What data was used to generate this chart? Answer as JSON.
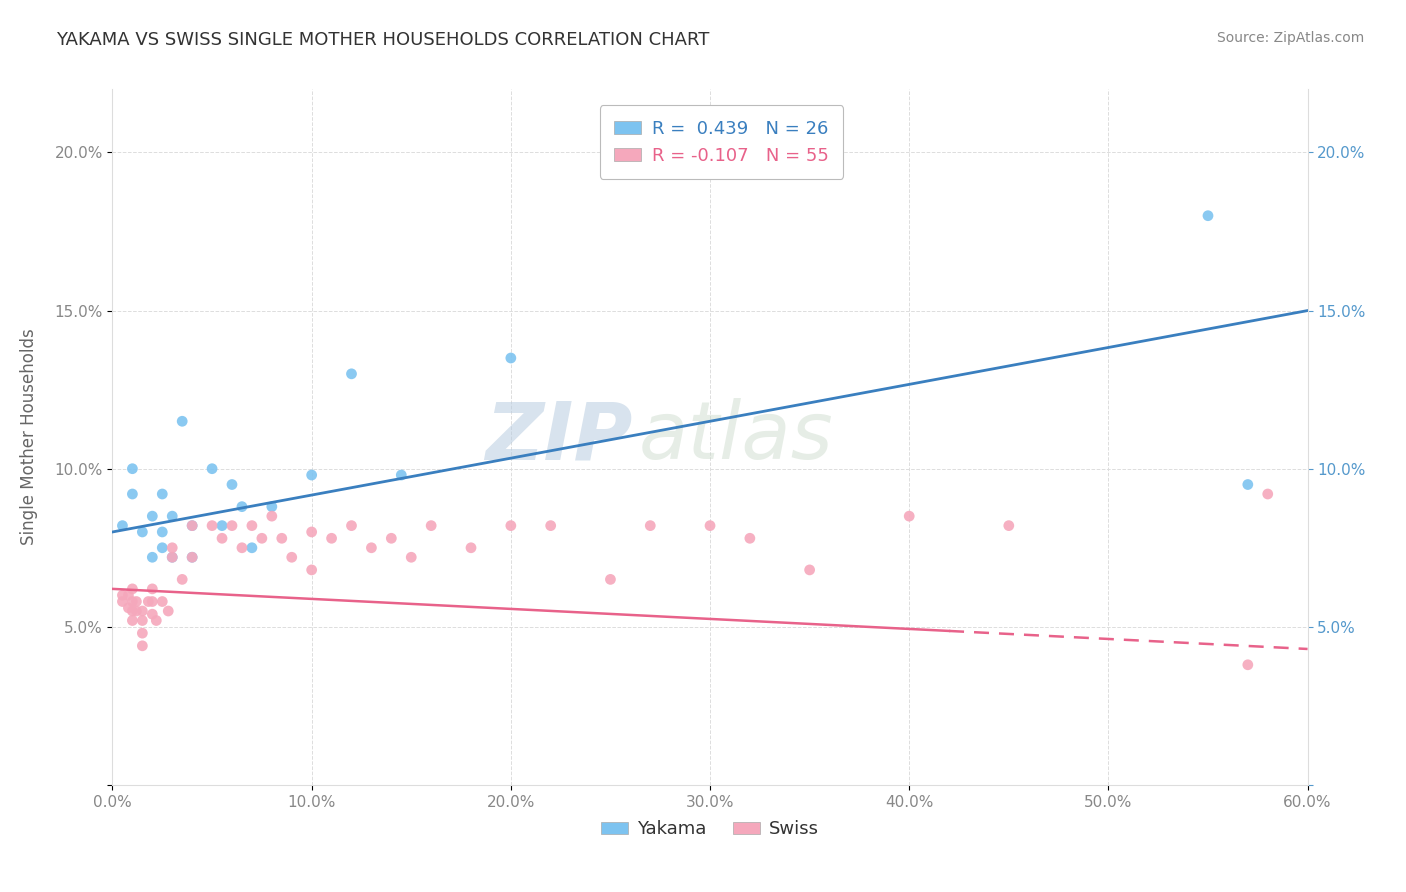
{
  "title": "YAKAMA VS SWISS SINGLE MOTHER HOUSEHOLDS CORRELATION CHART",
  "source": "Source: ZipAtlas.com",
  "ylabel_label": "Single Mother Households",
  "xlim": [
    0.0,
    0.6
  ],
  "ylim": [
    0.0,
    0.22
  ],
  "xticks": [
    0.0,
    0.1,
    0.2,
    0.3,
    0.4,
    0.5,
    0.6
  ],
  "xticklabels": [
    "0.0%",
    "10.0%",
    "20.0%",
    "30.0%",
    "40.0%",
    "50.0%",
    "60.0%"
  ],
  "yticks": [
    0.0,
    0.05,
    0.1,
    0.15,
    0.2
  ],
  "yticklabels": [
    "",
    "5.0%",
    "10.0%",
    "15.0%",
    "20.0%"
  ],
  "R_yakama": 0.439,
  "N_yakama": 26,
  "R_swiss": -0.107,
  "N_swiss": 55,
  "yakama_color": "#7DC3F0",
  "swiss_color": "#F5A8BC",
  "trendline_yakama_color": "#3A7FBF",
  "trendline_swiss_color": "#E8628A",
  "watermark": "ZIPatlas",
  "watermark_color": "#C8D8E8",
  "background_color": "#FFFFFF",
  "grid_color": "#DDDDDD",
  "title_color": "#333333",
  "axis_label_color": "#666666",
  "tick_label_color": "#888888",
  "source_color": "#888888",
  "yakama_x": [
    0.005,
    0.01,
    0.01,
    0.015,
    0.02,
    0.02,
    0.025,
    0.025,
    0.025,
    0.03,
    0.03,
    0.035,
    0.04,
    0.04,
    0.05,
    0.055,
    0.06,
    0.065,
    0.07,
    0.08,
    0.1,
    0.12,
    0.145,
    0.2,
    0.55,
    0.57
  ],
  "yakama_y": [
    0.082,
    0.092,
    0.1,
    0.08,
    0.072,
    0.085,
    0.075,
    0.08,
    0.092,
    0.072,
    0.085,
    0.115,
    0.082,
    0.072,
    0.1,
    0.082,
    0.095,
    0.088,
    0.075,
    0.088,
    0.098,
    0.13,
    0.098,
    0.135,
    0.18,
    0.095
  ],
  "swiss_x": [
    0.005,
    0.005,
    0.008,
    0.008,
    0.01,
    0.01,
    0.01,
    0.01,
    0.012,
    0.012,
    0.015,
    0.015,
    0.015,
    0.015,
    0.018,
    0.02,
    0.02,
    0.02,
    0.022,
    0.025,
    0.028,
    0.03,
    0.03,
    0.035,
    0.04,
    0.04,
    0.05,
    0.055,
    0.06,
    0.065,
    0.07,
    0.075,
    0.08,
    0.085,
    0.09,
    0.1,
    0.1,
    0.11,
    0.12,
    0.13,
    0.14,
    0.15,
    0.16,
    0.18,
    0.2,
    0.22,
    0.25,
    0.27,
    0.3,
    0.32,
    0.35,
    0.4,
    0.45,
    0.57,
    0.58
  ],
  "swiss_y": [
    0.06,
    0.058,
    0.056,
    0.06,
    0.062,
    0.058,
    0.055,
    0.052,
    0.058,
    0.055,
    0.055,
    0.052,
    0.048,
    0.044,
    0.058,
    0.062,
    0.058,
    0.054,
    0.052,
    0.058,
    0.055,
    0.075,
    0.072,
    0.065,
    0.082,
    0.072,
    0.082,
    0.078,
    0.082,
    0.075,
    0.082,
    0.078,
    0.085,
    0.078,
    0.072,
    0.08,
    0.068,
    0.078,
    0.082,
    0.075,
    0.078,
    0.072,
    0.082,
    0.075,
    0.082,
    0.082,
    0.065,
    0.082,
    0.082,
    0.078,
    0.068,
    0.085,
    0.082,
    0.038,
    0.092
  ],
  "trendline_switch_x": 0.42
}
